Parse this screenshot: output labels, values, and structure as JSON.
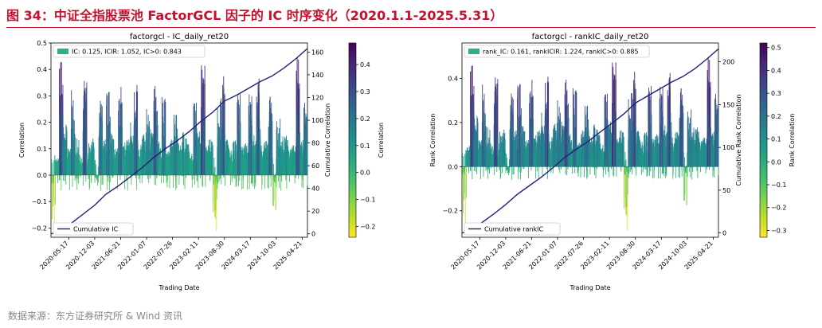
{
  "figure": {
    "title": "图 34：中证全指股票池 FactorGCL 因子的 IC 时序变化（2020.1.1-2025.5.31）",
    "source": "数据来源：东方证券研究所 & Wind 资讯"
  },
  "colors": {
    "title_red": "#c8102e",
    "cum_line": "#1f1f7a",
    "legend_patch": "#2db27d"
  },
  "chart_data": [
    {
      "type": "bar",
      "title": "factorgcl - IC_daily_ret20",
      "xlabel": "Trading Date",
      "ylabel": "Correlation",
      "y2label": "Cumulative Correlation",
      "colorbar_label": "Correlation",
      "legend": {
        "placement": "top-left",
        "text": "IC: 0.125, ICIR: 1.052, IC>0: 0.843"
      },
      "line_legend": {
        "placement": "bottom-left",
        "text": "Cumulative IC"
      },
      "ylim": [
        -0.235,
        0.5
      ],
      "yticks": [
        -0.2,
        -0.1,
        0.0,
        0.1,
        0.2,
        0.3,
        0.4,
        0.5
      ],
      "ytick_labels": [
        "−0.2",
        "−0.1",
        "0.0",
        "0.1",
        "0.2",
        "0.3",
        "0.4",
        "0.5"
      ],
      "y2lim": [
        -3,
        168
      ],
      "y2ticks": [
        0,
        20,
        40,
        60,
        80,
        100,
        120,
        140,
        160
      ],
      "y2tick_labels": [
        "0",
        "20",
        "40",
        "60",
        "80",
        "100",
        "120",
        "140",
        "160"
      ],
      "colorbar_range": [
        -0.24,
        0.48
      ],
      "colorbar_ticks": [
        -0.2,
        -0.1,
        0.0,
        0.1,
        0.2,
        0.3,
        0.4
      ],
      "colorbar_tick_labels": [
        "−0.2",
        "−0.1",
        "0.0",
        "0.1",
        "0.2",
        "0.3",
        "0.4"
      ],
      "xlim": [
        "2020-01-01",
        "2025-05-31"
      ],
      "xticks": [
        "2020-05-17",
        "2020-12-03",
        "2021-06-21",
        "2022-01-07",
        "2022-07-26",
        "2023-02-11",
        "2023-08-30",
        "2024-03-17",
        "2024-10-03",
        "2025-04-21"
      ],
      "cum_line": {
        "dates": [
          "2020-01-02",
          "2020-03-15",
          "2020-06-01",
          "2020-09-01",
          "2020-12-01",
          "2021-03-01",
          "2021-06-01",
          "2021-09-01",
          "2021-12-01",
          "2022-03-01",
          "2022-06-01",
          "2022-09-01",
          "2022-12-01",
          "2023-03-01",
          "2023-06-01",
          "2023-09-01",
          "2023-12-01",
          "2024-03-01",
          "2024-06-01",
          "2024-09-01",
          "2024-12-01",
          "2025-03-01",
          "2025-05-30"
        ],
        "values": [
          0,
          2,
          9,
          17,
          25,
          35,
          42,
          50,
          58,
          67,
          75,
          82,
          90,
          99,
          107,
          117,
          122,
          128,
          134,
          139,
          146,
          154,
          163
        ]
      },
      "bar_profile": {
        "dates": [
          "2020-01-02",
          "2020-02-01",
          "2020-03-01",
          "2020-04-01",
          "2020-05-01",
          "2020-06-01",
          "2020-07-01",
          "2020-08-01",
          "2020-09-01",
          "2020-10-01",
          "2020-11-01",
          "2020-12-01",
          "2021-01-01",
          "2021-02-01",
          "2021-03-01",
          "2021-04-01",
          "2021-05-01",
          "2021-06-01",
          "2021-07-01",
          "2021-08-01",
          "2021-09-01",
          "2021-10-01",
          "2021-11-01",
          "2021-12-01",
          "2022-01-01",
          "2022-02-01",
          "2022-03-01",
          "2022-04-01",
          "2022-05-01",
          "2022-06-01",
          "2022-07-01",
          "2022-08-01",
          "2022-09-01",
          "2022-10-01",
          "2022-11-01",
          "2022-12-01",
          "2023-01-01",
          "2023-02-01",
          "2023-03-01",
          "2023-04-01",
          "2023-05-01",
          "2023-06-01",
          "2023-07-01",
          "2023-08-01",
          "2023-09-01",
          "2023-10-01",
          "2023-11-01",
          "2023-12-01",
          "2024-01-01",
          "2024-02-01",
          "2024-03-01",
          "2024-04-01",
          "2024-05-01",
          "2024-06-01",
          "2024-07-01",
          "2024-08-01",
          "2024-09-01",
          "2024-10-01",
          "2024-11-01",
          "2024-12-01",
          "2025-01-01",
          "2025-02-01",
          "2025-03-01",
          "2025-04-01",
          "2025-05-01"
        ],
        "values": [
          -0.22,
          0.05,
          0.42,
          0.18,
          0.08,
          0.3,
          0.14,
          0.05,
          0.35,
          0.1,
          0.12,
          -0.02,
          0.28,
          0.12,
          0.3,
          0.15,
          0.08,
          0.32,
          0.1,
          0.12,
          0.2,
          0.33,
          0.1,
          0.14,
          0.25,
          0.15,
          0.34,
          0.1,
          0.28,
          0.08,
          0.12,
          0.22,
          0.1,
          0.15,
          0.12,
          0.08,
          0.28,
          0.14,
          0.42,
          0.1,
          0.12,
          -0.22,
          0.3,
          0.38,
          0.12,
          0.08,
          0.15,
          0.3,
          0.1,
          0.12,
          0.3,
          0.14,
          0.35,
          0.1,
          0.12,
          0.3,
          -0.15,
          0.2,
          0.12,
          0.15,
          0.08,
          0.1,
          0.45,
          0.12,
          0.28
        ]
      }
    },
    {
      "type": "bar",
      "title": "factorgcl - rankIC_daily_ret20",
      "xlabel": "Trading Date",
      "ylabel": "Rank Correlation",
      "y2label": "Cumulative Rank Correlation",
      "colorbar_label": "Rank Correlation",
      "legend": {
        "placement": "top-left",
        "text": "rank_IC: 0.161, rankICIR: 1.224, rankIC>0: 0.885"
      },
      "line_legend": {
        "placement": "bottom-left",
        "text": "Cumulative rankIC"
      },
      "ylim": [
        -0.32,
        0.56
      ],
      "yticks": [
        -0.2,
        0.0,
        0.2,
        0.4
      ],
      "ytick_labels": [
        "−0.2",
        "0.0",
        "0.2",
        "0.4"
      ],
      "y2lim": [
        -5,
        222
      ],
      "y2ticks": [
        0,
        50,
        100,
        150,
        200
      ],
      "y2tick_labels": [
        "0",
        "50",
        "100",
        "150",
        "200"
      ],
      "colorbar_range": [
        -0.33,
        0.52
      ],
      "colorbar_ticks": [
        -0.3,
        -0.2,
        -0.1,
        0.0,
        0.1,
        0.2,
        0.3,
        0.4,
        0.5
      ],
      "colorbar_tick_labels": [
        "−0.3",
        "−0.2",
        "−0.1",
        "0.0",
        "0.1",
        "0.2",
        "0.3",
        "0.4",
        "0.5"
      ],
      "xlim": [
        "2020-01-01",
        "2025-05-31"
      ],
      "xticks": [
        "2020-05-17",
        "2020-12-03",
        "2021-06-21",
        "2022-01-07",
        "2022-07-26",
        "2023-02-11",
        "2023-08-30",
        "2024-03-17",
        "2024-10-03",
        "2025-04-21"
      ],
      "cum_line": {
        "dates": [
          "2020-01-02",
          "2020-03-15",
          "2020-06-01",
          "2020-09-01",
          "2020-12-01",
          "2021-03-01",
          "2021-06-01",
          "2021-09-01",
          "2021-12-01",
          "2022-03-01",
          "2022-06-01",
          "2022-09-01",
          "2022-12-01",
          "2023-03-01",
          "2023-06-01",
          "2023-09-01",
          "2023-12-01",
          "2024-03-01",
          "2024-06-01",
          "2024-09-01",
          "2024-12-01",
          "2025-03-01",
          "2025-05-30"
        ],
        "values": [
          0,
          3,
          12,
          22,
          33,
          45,
          55,
          65,
          76,
          88,
          98,
          107,
          118,
          128,
          139,
          152,
          160,
          168,
          176,
          183,
          192,
          203,
          215
        ]
      },
      "bar_profile": {
        "dates": [
          "2020-01-02",
          "2020-02-01",
          "2020-03-01",
          "2020-04-01",
          "2020-05-01",
          "2020-06-01",
          "2020-07-01",
          "2020-08-01",
          "2020-09-01",
          "2020-10-01",
          "2020-11-01",
          "2020-12-01",
          "2021-01-01",
          "2021-02-01",
          "2021-03-01",
          "2021-04-01",
          "2021-05-01",
          "2021-06-01",
          "2021-07-01",
          "2021-08-01",
          "2021-09-01",
          "2021-10-01",
          "2021-11-01",
          "2021-12-01",
          "2022-01-01",
          "2022-02-01",
          "2022-03-01",
          "2022-04-01",
          "2022-05-01",
          "2022-06-01",
          "2022-07-01",
          "2022-08-01",
          "2022-09-01",
          "2022-10-01",
          "2022-11-01",
          "2022-12-01",
          "2023-01-01",
          "2023-02-01",
          "2023-03-01",
          "2023-04-01",
          "2023-05-01",
          "2023-06-01",
          "2023-07-01",
          "2023-08-01",
          "2023-09-01",
          "2023-10-01",
          "2023-11-01",
          "2023-12-01",
          "2024-01-01",
          "2024-02-01",
          "2024-03-01",
          "2024-04-01",
          "2024-05-01",
          "2024-06-01",
          "2024-07-01",
          "2024-08-01",
          "2024-09-01",
          "2024-10-01",
          "2024-11-01",
          "2024-12-01",
          "2025-01-01",
          "2025-02-01",
          "2025-03-01",
          "2025-04-01",
          "2025-05-01"
        ],
        "values": [
          -0.28,
          0.08,
          0.45,
          0.22,
          0.1,
          0.35,
          0.18,
          0.08,
          0.4,
          0.14,
          0.15,
          -0.03,
          0.33,
          0.15,
          0.36,
          0.18,
          0.1,
          0.38,
          0.12,
          0.15,
          0.25,
          0.4,
          0.12,
          0.18,
          0.3,
          0.18,
          0.4,
          0.12,
          0.34,
          0.1,
          0.15,
          0.27,
          0.12,
          0.18,
          0.15,
          0.1,
          0.34,
          0.18,
          0.48,
          0.12,
          0.15,
          -0.3,
          0.36,
          0.44,
          0.15,
          0.1,
          0.18,
          0.36,
          0.12,
          0.15,
          0.36,
          0.18,
          0.41,
          0.12,
          0.15,
          0.36,
          -0.2,
          0.25,
          0.15,
          0.18,
          0.1,
          0.12,
          0.5,
          0.15,
          0.34
        ]
      }
    }
  ]
}
